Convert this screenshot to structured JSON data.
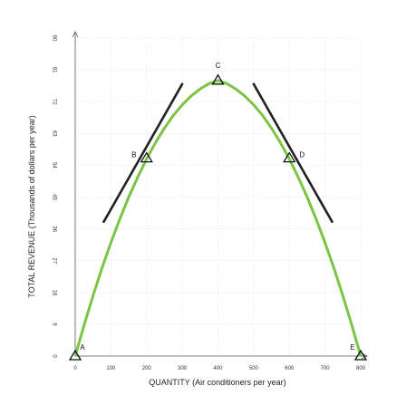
{
  "chart_data": {
    "type": "line",
    "xlabel": "QUANTITY (Air conditioners per year)",
    "ylabel": "TOTAL REVENUE (Thousands of dollars per year)",
    "xlim": [
      0,
      800
    ],
    "ylim": [
      0,
      90
    ],
    "x_ticks": [
      "0",
      "100",
      "200",
      "300",
      "400",
      "500",
      "600",
      "700",
      "800"
    ],
    "y_ticks": [
      "0",
      "9",
      "18",
      "27",
      "36",
      "45",
      "54",
      "63",
      "72",
      "81",
      "90"
    ],
    "grid": true,
    "series": [
      {
        "x": [
          0,
          25,
          50,
          75,
          100,
          125,
          150,
          175,
          200,
          225,
          250,
          275,
          300,
          325,
          350,
          375,
          400,
          425,
          450,
          475,
          500,
          525,
          550,
          575,
          600,
          625,
          650,
          675,
          700,
          725,
          750,
          775,
          800
        ],
        "y": [
          0,
          8.8,
          17.1,
          24.9,
          32.1,
          38.8,
          45.0,
          50.6,
          55.8,
          60.4,
          64.5,
          68.1,
          71.1,
          73.6,
          75.6,
          77.1,
          78.0,
          77.1,
          75.6,
          73.6,
          71.1,
          68.1,
          64.5,
          60.4,
          55.8,
          50.6,
          45.0,
          38.8,
          32.1,
          24.9,
          17.1,
          8.8,
          0
        ],
        "color": "#7cc444"
      }
    ],
    "tangents": [
      {
        "through": "B",
        "from": [
          80,
          38
        ],
        "to": [
          300,
          77
        ],
        "color": "#222222"
      },
      {
        "through": "D",
        "from": [
          500,
          77
        ],
        "to": [
          720,
          38
        ],
        "color": "#222222"
      }
    ],
    "points": [
      {
        "label": "A",
        "x": 0,
        "y": 0
      },
      {
        "label": "B",
        "x": 200,
        "y": 56
      },
      {
        "label": "C",
        "x": 400,
        "y": 78
      },
      {
        "label": "D",
        "x": 600,
        "y": 56
      },
      {
        "label": "E",
        "x": 800,
        "y": 0
      }
    ]
  }
}
